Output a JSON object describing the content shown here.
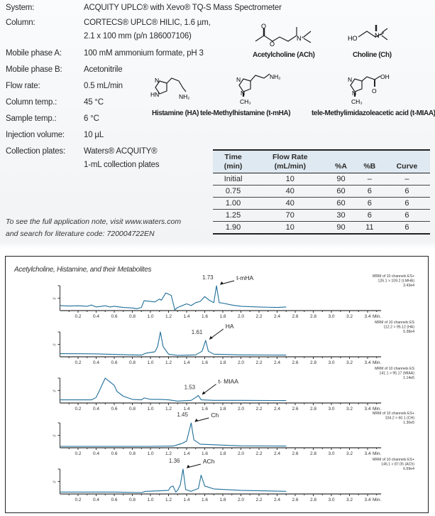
{
  "conditions": [
    {
      "label": "System:",
      "value": "ACQUITY UPLC® with Xevo® TQ-S Mass Spectrometer"
    },
    {
      "label": "Column:",
      "value": "CORTECS® UPLC® HILIC, 1.6 µm,",
      "value2": "2.1 x 100 mm (p/n 186007106)"
    },
    {
      "label": "Mobile phase A:",
      "value": "100 mM ammonium formate, pH 3"
    },
    {
      "label": "Mobile phase B:",
      "value": "Acetonitrile"
    },
    {
      "label": "Flow rate:",
      "value": "0.5 mL/min"
    },
    {
      "label": "Column temp.:",
      "value": "45 °C"
    },
    {
      "label": "Sample temp.:",
      "value": "6 °C"
    },
    {
      "label": "Injection volume:",
      "value": "10 µL"
    },
    {
      "label": "Collection plates:",
      "value": "Waters® ACQUITY®",
      "value2": "1-mL collection plates"
    }
  ],
  "structures": {
    "acetylcholine": "Acetylcholine (ACh)",
    "choline": "Choline (Ch)",
    "histamine": "Histamine (HA)",
    "tmha": "tele-Methylhistamine (t-mHA)",
    "tmiaa": "tele-Methylimidazoleacetic acid (t-MIAA)",
    "atoms": {
      "o": "O",
      "n_plus": "N⁺",
      "ho": "HO",
      "n": "N",
      "hn": "HN",
      "nh2": "NH₂",
      "ch3": "CH₃",
      "oh": "OH"
    }
  },
  "gradient_table": {
    "headers": [
      [
        "Time",
        "(min)"
      ],
      [
        "Flow Rate",
        "(mL/min)"
      ],
      [
        "",
        "%A"
      ],
      [
        "",
        "%B"
      ],
      [
        "",
        "Curve"
      ]
    ],
    "rows": [
      [
        "Initial",
        "10",
        "90",
        "–",
        "–"
      ],
      [
        "0.75",
        "40",
        "60",
        "6",
        "6"
      ],
      [
        "1.00",
        "40",
        "60",
        "6",
        "6"
      ],
      [
        "1.25",
        "70",
        "30",
        "6",
        "6"
      ],
      [
        "1.90",
        "10",
        "90",
        "11",
        "6"
      ]
    ]
  },
  "note": {
    "line1": "To see the full application note, visit www.waters.com",
    "line2": "and search for literature code: 720004722EN"
  },
  "chart_data": {
    "type": "line",
    "title": "Acetylcholine, Histamine, and their Metabolites",
    "xlabel": "Min.",
    "ylabel": "%",
    "xlim": [
      0,
      3.55
    ],
    "ylim": [
      0,
      100
    ],
    "xticks": [
      "0.2",
      "0.4",
      "0.6",
      "0.8",
      "1.0",
      "1.2",
      "1.4",
      "1.6",
      "1.8",
      "2.0",
      "2.2",
      "2.4",
      "2.6",
      "2.8",
      "3.0",
      "3.2",
      "3.4"
    ],
    "line_color": "#1f6f9a",
    "panels": [
      {
        "info": [
          "MRM of 10 channels ES+",
          "126.1 > 109.2 (t-MHA)",
          "3.43e4"
        ],
        "peak_label": "1.73",
        "peak_rt": 1.73,
        "compound": "t-mHA",
        "points": [
          [
            0,
            18
          ],
          [
            0.1,
            16
          ],
          [
            0.2,
            17
          ],
          [
            0.3,
            15
          ],
          [
            0.35,
            20
          ],
          [
            0.4,
            12
          ],
          [
            0.5,
            17
          ],
          [
            0.55,
            12
          ],
          [
            0.6,
            15
          ],
          [
            0.7,
            10
          ],
          [
            0.8,
            8
          ],
          [
            0.85,
            5
          ],
          [
            0.9,
            10
          ],
          [
            0.93,
            38
          ],
          [
            1.0,
            35
          ],
          [
            1.05,
            33
          ],
          [
            1.1,
            45
          ],
          [
            1.12,
            40
          ],
          [
            1.17,
            70
          ],
          [
            1.2,
            65
          ],
          [
            1.23,
            60
          ],
          [
            1.27,
            0
          ],
          [
            1.3,
            10
          ],
          [
            1.4,
            25
          ],
          [
            1.45,
            18
          ],
          [
            1.5,
            30
          ],
          [
            1.55,
            35
          ],
          [
            1.6,
            55
          ],
          [
            1.65,
            40
          ],
          [
            1.7,
            30
          ],
          [
            1.73,
            100
          ],
          [
            1.76,
            30
          ],
          [
            1.8,
            28
          ],
          [
            1.9,
            20
          ],
          [
            2.0,
            15
          ],
          [
            2.2,
            12
          ],
          [
            2.4,
            10
          ],
          [
            2.5,
            12
          ]
        ]
      },
      {
        "info": [
          "MRM of 10 channels ES",
          "112.2 > 95.12 (HA)",
          "5.38e4"
        ],
        "peak_label": "1.61",
        "peak_rt": 1.61,
        "compound": "HA",
        "points": [
          [
            0,
            10
          ],
          [
            0.4,
            9
          ],
          [
            0.8,
            5
          ],
          [
            0.9,
            4
          ],
          [
            0.95,
            12
          ],
          [
            1.05,
            18
          ],
          [
            1.08,
            40
          ],
          [
            1.11,
            100
          ],
          [
            1.14,
            40
          ],
          [
            1.2,
            8
          ],
          [
            1.3,
            3
          ],
          [
            1.5,
            5
          ],
          [
            1.57,
            20
          ],
          [
            1.61,
            65
          ],
          [
            1.64,
            20
          ],
          [
            1.7,
            8
          ],
          [
            2.0,
            5
          ],
          [
            2.5,
            4
          ]
        ]
      },
      {
        "info": [
          "MRM of 10 channels ES",
          "141.1 > 95.17 (MIAA)",
          "1.14e5"
        ],
        "peak_label": "1.53",
        "peak_rt": 1.53,
        "compound": "t- MIAA",
        "points": [
          [
            0,
            10
          ],
          [
            0.35,
            10
          ],
          [
            0.4,
            20
          ],
          [
            0.45,
            60
          ],
          [
            0.5,
            100
          ],
          [
            0.55,
            85
          ],
          [
            0.6,
            70
          ],
          [
            0.63,
            45
          ],
          [
            0.7,
            25
          ],
          [
            0.8,
            12
          ],
          [
            0.9,
            10
          ],
          [
            0.93,
            18
          ],
          [
            1.0,
            12
          ],
          [
            1.1,
            12
          ],
          [
            1.2,
            10
          ],
          [
            1.3,
            5
          ],
          [
            1.45,
            8
          ],
          [
            1.5,
            20
          ],
          [
            1.53,
            28
          ],
          [
            1.56,
            10
          ],
          [
            1.7,
            8
          ],
          [
            2.0,
            8
          ],
          [
            2.5,
            7
          ]
        ]
      },
      {
        "info": [
          "MRM of 10 channels ES+",
          "104.2 > 60.1 (CH)",
          "1.30e5"
        ],
        "peak_label": "1.45",
        "peak_rt": 1.45,
        "compound": "Ch",
        "points": [
          [
            0,
            3
          ],
          [
            1.0,
            3
          ],
          [
            1.25,
            4
          ],
          [
            1.35,
            15
          ],
          [
            1.4,
            25
          ],
          [
            1.43,
            70
          ],
          [
            1.45,
            100
          ],
          [
            1.48,
            30
          ],
          [
            1.55,
            12
          ],
          [
            1.8,
            8
          ],
          [
            2.0,
            5
          ],
          [
            2.5,
            4
          ]
        ]
      },
      {
        "info": [
          "MRM of 10 channels ES+",
          "146.1 > 87.05 (ACh)",
          "6.69e4"
        ],
        "peak_label": "1.36",
        "peak_rt": 1.36,
        "compound": "ACh",
        "points": [
          [
            0,
            5
          ],
          [
            0.6,
            5
          ],
          [
            0.9,
            3
          ],
          [
            0.95,
            8
          ],
          [
            1.1,
            10
          ],
          [
            1.2,
            12
          ],
          [
            1.22,
            25
          ],
          [
            1.25,
            30
          ],
          [
            1.28,
            5
          ],
          [
            1.3,
            12
          ],
          [
            1.33,
            35
          ],
          [
            1.36,
            100
          ],
          [
            1.39,
            15
          ],
          [
            1.45,
            8
          ],
          [
            1.53,
            20
          ],
          [
            1.56,
            75
          ],
          [
            1.6,
            30
          ],
          [
            1.7,
            18
          ],
          [
            2.0,
            12
          ],
          [
            2.5,
            8
          ]
        ]
      }
    ]
  }
}
